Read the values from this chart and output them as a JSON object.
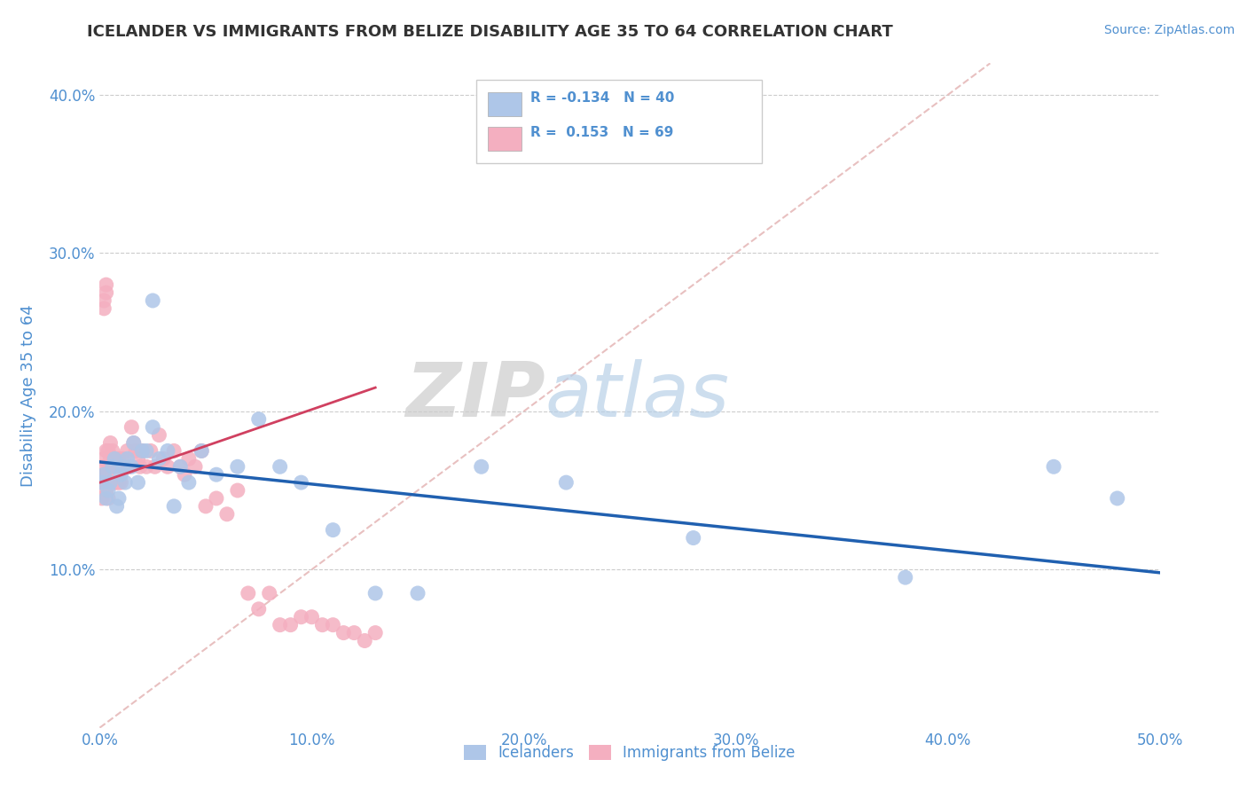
{
  "title": "ICELANDER VS IMMIGRANTS FROM BELIZE DISABILITY AGE 35 TO 64 CORRELATION CHART",
  "source": "Source: ZipAtlas.com",
  "ylabel": "Disability Age 35 to 64",
  "xlim": [
    0.0,
    0.5
  ],
  "ylim": [
    0.0,
    0.42
  ],
  "xticks": [
    0.0,
    0.1,
    0.2,
    0.3,
    0.4,
    0.5
  ],
  "yticks": [
    0.1,
    0.2,
    0.3,
    0.4
  ],
  "ytick_labels": [
    "10.0%",
    "20.0%",
    "30.0%",
    "40.0%"
  ],
  "xtick_labels": [
    "0.0%",
    "10.0%",
    "20.0%",
    "30.0%",
    "40.0%",
    "50.0%"
  ],
  "watermark_zip": "ZIP",
  "watermark_atlas": "atlas",
  "icelander_color": "#aec6e8",
  "belize_color": "#f4afc0",
  "trendline_iceland_color": "#2060b0",
  "trendline_belize_color": "#d04060",
  "diagonal_color": "#e8c0c0",
  "grid_color": "#cccccc",
  "axis_color": "#5090d0",
  "icelanders_x": [
    0.001,
    0.002,
    0.003,
    0.004,
    0.005,
    0.006,
    0.007,
    0.008,
    0.009,
    0.01,
    0.011,
    0.012,
    0.013,
    0.015,
    0.016,
    0.018,
    0.02,
    0.022,
    0.025,
    0.028,
    0.032,
    0.035,
    0.038,
    0.042,
    0.048,
    0.055,
    0.065,
    0.075,
    0.085,
    0.095,
    0.11,
    0.13,
    0.15,
    0.18,
    0.22,
    0.28,
    0.38,
    0.45,
    0.48,
    0.025
  ],
  "icelanders_y": [
    0.155,
    0.16,
    0.145,
    0.15,
    0.155,
    0.165,
    0.17,
    0.14,
    0.145,
    0.16,
    0.165,
    0.155,
    0.17,
    0.165,
    0.18,
    0.155,
    0.175,
    0.175,
    0.19,
    0.17,
    0.175,
    0.14,
    0.165,
    0.155,
    0.175,
    0.16,
    0.165,
    0.195,
    0.165,
    0.155,
    0.125,
    0.085,
    0.085,
    0.165,
    0.155,
    0.12,
    0.095,
    0.165,
    0.145,
    0.27
  ],
  "belize_x": [
    0.001,
    0.001,
    0.001,
    0.002,
    0.002,
    0.002,
    0.003,
    0.003,
    0.003,
    0.004,
    0.004,
    0.004,
    0.005,
    0.005,
    0.005,
    0.006,
    0.006,
    0.006,
    0.007,
    0.007,
    0.008,
    0.008,
    0.009,
    0.009,
    0.01,
    0.01,
    0.011,
    0.012,
    0.013,
    0.014,
    0.015,
    0.016,
    0.017,
    0.018,
    0.019,
    0.02,
    0.022,
    0.024,
    0.026,
    0.028,
    0.03,
    0.032,
    0.035,
    0.038,
    0.04,
    0.042,
    0.045,
    0.048,
    0.05,
    0.055,
    0.06,
    0.065,
    0.07,
    0.075,
    0.08,
    0.085,
    0.09,
    0.095,
    0.1,
    0.105,
    0.11,
    0.115,
    0.12,
    0.125,
    0.13,
    0.002,
    0.002,
    0.003,
    0.003
  ],
  "belize_y": [
    0.165,
    0.155,
    0.145,
    0.17,
    0.16,
    0.155,
    0.175,
    0.16,
    0.15,
    0.175,
    0.165,
    0.145,
    0.18,
    0.17,
    0.155,
    0.175,
    0.165,
    0.155,
    0.17,
    0.155,
    0.165,
    0.155,
    0.17,
    0.155,
    0.165,
    0.155,
    0.17,
    0.165,
    0.175,
    0.165,
    0.19,
    0.18,
    0.175,
    0.17,
    0.165,
    0.175,
    0.165,
    0.175,
    0.165,
    0.185,
    0.17,
    0.165,
    0.175,
    0.165,
    0.16,
    0.17,
    0.165,
    0.175,
    0.14,
    0.145,
    0.135,
    0.15,
    0.085,
    0.075,
    0.085,
    0.065,
    0.065,
    0.07,
    0.07,
    0.065,
    0.065,
    0.06,
    0.06,
    0.055,
    0.06,
    0.265,
    0.27,
    0.275,
    0.28
  ],
  "icelander_trendline_x": [
    0.0,
    0.5
  ],
  "icelander_trendline_y": [
    0.168,
    0.098
  ],
  "belize_trendline_x": [
    0.0,
    0.13
  ],
  "belize_trendline_y": [
    0.155,
    0.215
  ]
}
